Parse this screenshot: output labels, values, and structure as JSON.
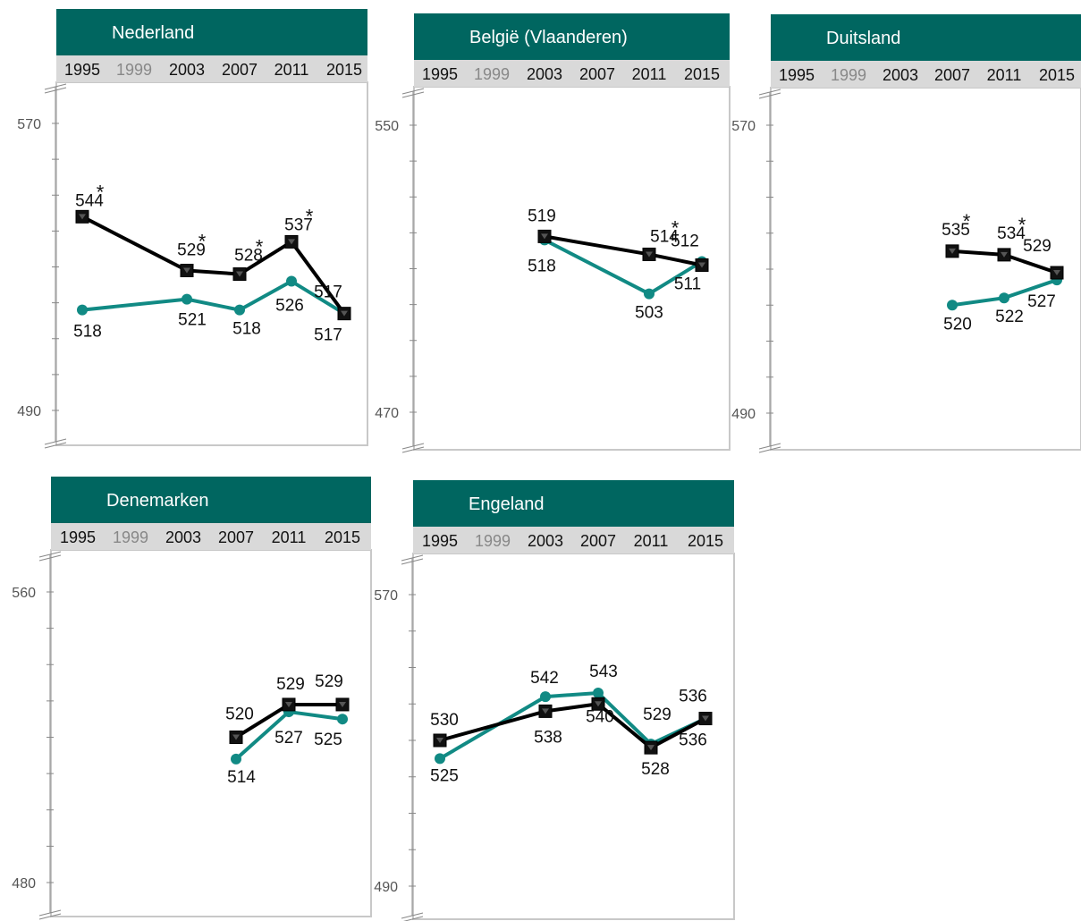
{
  "colors": {
    "header_bg": "#006660",
    "header_text": "#ffffff",
    "year_bar_bg": "#d9d9d9",
    "year_active": "#111111",
    "year_inactive": "#888888",
    "black_series": "#000000",
    "teal_series": "#118a84",
    "frame": "#c8c8c8",
    "axis": "#888888"
  },
  "chart_data": [
    {
      "type": "line",
      "title": "Nederland",
      "x": [
        "1995",
        "1999",
        "2003",
        "2007",
        "2011",
        "2015"
      ],
      "x_inactive": [
        "1999"
      ],
      "y_tick_labels": [
        "570",
        "490"
      ],
      "ylim": [
        480,
        580
      ],
      "series": [
        {
          "color": "black",
          "values": [
            544,
            null,
            529,
            528,
            537,
            517
          ],
          "labels": [
            "544",
            null,
            "529",
            "528",
            "537",
            "517"
          ],
          "significant": [
            true,
            false,
            true,
            true,
            true,
            false
          ]
        },
        {
          "color": "teal",
          "values": [
            518,
            null,
            521,
            518,
            526,
            517
          ],
          "labels": [
            "518",
            null,
            "521",
            "518",
            "526",
            "517"
          ]
        }
      ]
    },
    {
      "type": "line",
      "title": "België (Vlaanderen)",
      "x": [
        "1995",
        "1999",
        "2003",
        "2007",
        "2011",
        "2015"
      ],
      "x_inactive": [
        "1999"
      ],
      "y_tick_labels": [
        "550",
        "470"
      ],
      "ylim": [
        460,
        560
      ],
      "series": [
        {
          "color": "black",
          "values": [
            null,
            null,
            519,
            null,
            514,
            511
          ],
          "labels": [
            null,
            null,
            "519",
            null,
            "514",
            "511"
          ],
          "significant": [
            false,
            false,
            false,
            false,
            true,
            false
          ]
        },
        {
          "color": "teal",
          "values": [
            null,
            null,
            518,
            null,
            503,
            512
          ],
          "labels": [
            null,
            null,
            "518",
            null,
            "503",
            "512"
          ]
        }
      ]
    },
    {
      "type": "line",
      "title": "Duitsland",
      "x": [
        "1995",
        "1999",
        "2003",
        "2007",
        "2011",
        "2015"
      ],
      "x_inactive": [
        "1999"
      ],
      "y_tick_labels": [
        "570",
        "490"
      ],
      "ylim": [
        480,
        580
      ],
      "series": [
        {
          "color": "black",
          "values": [
            null,
            null,
            null,
            535,
            534,
            529
          ],
          "labels": [
            null,
            null,
            null,
            "535",
            "534",
            "529"
          ],
          "significant": [
            false,
            false,
            false,
            true,
            true,
            false
          ]
        },
        {
          "color": "teal",
          "values": [
            null,
            null,
            null,
            520,
            522,
            527
          ],
          "labels": [
            null,
            null,
            null,
            "520",
            "522",
            "527"
          ]
        }
      ]
    },
    {
      "type": "line",
      "title": "Denemarken",
      "x": [
        "1995",
        "1999",
        "2003",
        "2007",
        "2011",
        "2015"
      ],
      "x_inactive": [
        "1999"
      ],
      "y_tick_labels": [
        "560",
        "480"
      ],
      "ylim": [
        470,
        570
      ],
      "series": [
        {
          "color": "black",
          "values": [
            null,
            null,
            null,
            520,
            529,
            529
          ],
          "labels": [
            null,
            null,
            null,
            "520",
            "529",
            "529"
          ],
          "significant": [
            false,
            false,
            false,
            false,
            false,
            false
          ]
        },
        {
          "color": "teal",
          "values": [
            null,
            null,
            null,
            514,
            527,
            525
          ],
          "labels": [
            null,
            null,
            null,
            "514",
            "527",
            "525"
          ]
        }
      ]
    },
    {
      "type": "line",
      "title": "Engeland",
      "x": [
        "1995",
        "1999",
        "2003",
        "2007",
        "2011",
        "2015"
      ],
      "x_inactive": [
        "1999"
      ],
      "y_tick_labels": [
        "570",
        "490"
      ],
      "ylim": [
        480,
        580
      ],
      "series": [
        {
          "color": "black",
          "values": [
            530,
            null,
            538,
            540,
            528,
            536
          ],
          "labels": [
            "530",
            null,
            "538",
            "540",
            "528",
            "536"
          ],
          "significant": [
            false,
            false,
            false,
            false,
            false,
            false
          ]
        },
        {
          "color": "teal",
          "values": [
            525,
            null,
            542,
            543,
            529,
            536
          ],
          "labels": [
            "525",
            null,
            "542",
            "543",
            "529",
            "536"
          ]
        }
      ]
    }
  ]
}
